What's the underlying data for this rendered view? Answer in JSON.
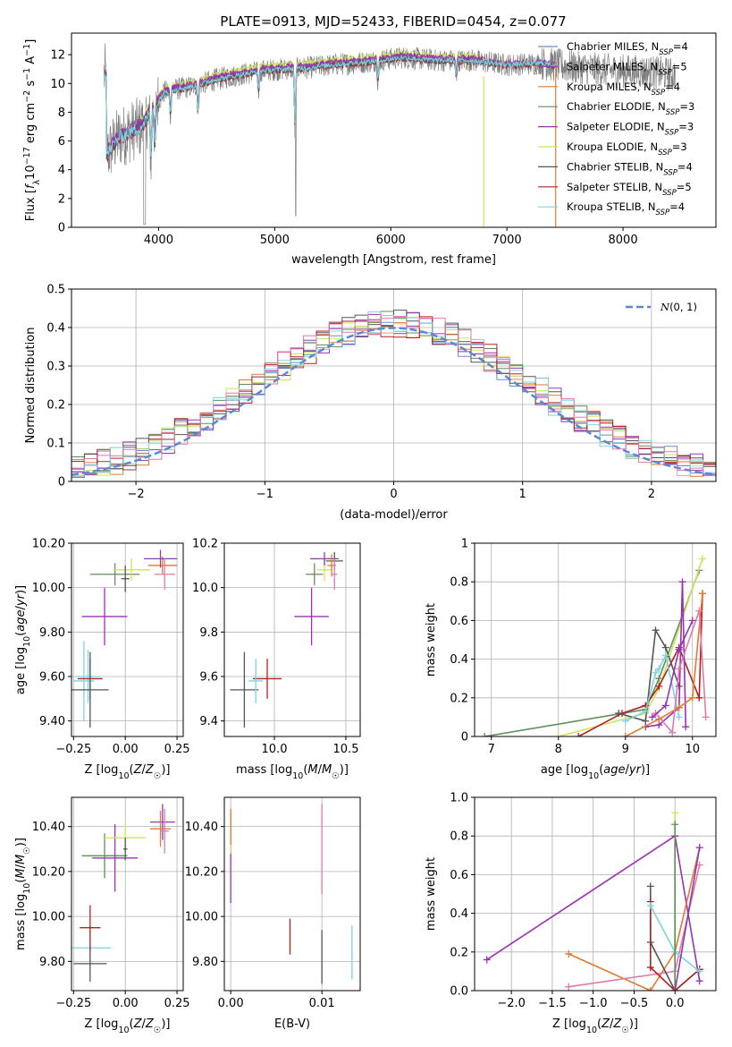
{
  "figure_title": "PLATE=0913, MJD=52433, FIBERID=0454, z=0.077",
  "colors": {
    "chabrier_miles": "#6a8dc8",
    "salpeter_miles": "#8e3aad",
    "kroupa_miles": "#e07a30",
    "chabrier_elodie": "#5f8f5a",
    "salpeter_elodie": "#9b30b0",
    "kroupa_elodie": "#cfe35a",
    "chabrier_stelib": "#555555",
    "salpeter_stelib": "#b22020",
    "kroupa_stelib": "#7fd3df",
    "pink": "#e07aa8",
    "data_spectrum": "#808080",
    "normal_curve": "#5b87d6",
    "grid": "#b0b0b0"
  },
  "chart_data": [
    {
      "type": "line",
      "id": "spectrum",
      "xlabel": "wavelength [Angstrom, rest frame]",
      "ylabel": "Flux [f_λ10^-17 erg cm^-2 s^-1 A^-1]",
      "xlim": [
        3250,
        8800
      ],
      "ylim": [
        0,
        13.5
      ],
      "xticks": [
        4000,
        5000,
        6000,
        7000,
        8000
      ],
      "yticks": [
        0,
        2,
        4,
        6,
        8,
        10,
        12
      ],
      "grid": false,
      "legend_position": "right",
      "legend": [
        "Chabrier MILES, N_SSP=4",
        "Salpeter MILES, N_SSP=5",
        "Kroupa MILES, N_SSP=4",
        "Chabrier ELODIE, N_SSP=3",
        "Salpeter ELODIE, N_SSP=3",
        "Kroupa ELODIE, N_SSP=3",
        "Chabrier STELIB, N_SSP=4",
        "Salpeter STELIB, N_SSP=5",
        "Kroupa STELIB, N_SSP=4"
      ],
      "continuum": {
        "x": [
          3550,
          3650,
          3750,
          3850,
          3950,
          4050,
          4150,
          4300,
          4500,
          4700,
          4900,
          5100,
          5300,
          5500,
          5800,
          6100,
          6400,
          6700,
          7000,
          7300,
          7600,
          7900,
          8200,
          8450
        ],
        "y": [
          5.0,
          6.2,
          6.6,
          7.0,
          8.2,
          9.4,
          9.6,
          9.8,
          10.3,
          10.6,
          10.9,
          11.0,
          11.1,
          11.3,
          11.5,
          11.8,
          11.6,
          11.6,
          11.3,
          11.4,
          11.1,
          10.9,
          10.8,
          10.6
        ]
      },
      "data_range": [
        3530,
        8450
      ]
    },
    {
      "type": "bar",
      "id": "residual-histograms",
      "xlabel": "(data-model)/error",
      "ylabel": "Normed distribution",
      "xlim": [
        -2.5,
        2.5
      ],
      "ylim": [
        0,
        0.5
      ],
      "xticks": [
        -2,
        -1,
        0,
        1,
        2
      ],
      "yticks": [
        0.0,
        0.1,
        0.2,
        0.3,
        0.4,
        0.5
      ],
      "bin_width": 0.1,
      "bin_start": -2.5,
      "grid": true,
      "legend_position": "top-right",
      "legend": [
        "N(0,1)"
      ],
      "normal_curve": {
        "mean": 0,
        "sigma": 1
      }
    },
    {
      "type": "scatter",
      "id": "age-vs-metallicity",
      "xlabel": "Z [log10(Z/Z☉)]",
      "ylabel": "age [log10(age/yr)]",
      "xlim": [
        -0.26,
        0.28
      ],
      "ylim": [
        9.33,
        10.2
      ],
      "xticks": [
        -0.25,
        0.0,
        0.25
      ],
      "yticks": [
        9.4,
        9.6,
        9.8,
        10.0,
        10.2
      ],
      "grid": true,
      "points": [
        {
          "c": "kroupa_stelib",
          "x": -0.2,
          "y": 9.58,
          "xerr": 0.05,
          "yerr": 0.18
        },
        {
          "c": "kroupa_stelib",
          "x": -0.18,
          "y": 9.6,
          "xerr": 0.06,
          "yerr": 0.12
        },
        {
          "c": "salpeter_stelib",
          "x": -0.17,
          "y": 9.59,
          "xerr": 0.06,
          "yerr": 0.09
        },
        {
          "c": "chabrier_stelib",
          "x": -0.17,
          "y": 9.54,
          "xerr": 0.09,
          "yerr": 0.17
        },
        {
          "c": "salpeter_elodie",
          "x": -0.1,
          "y": 9.87,
          "xerr": 0.11,
          "yerr": 0.13
        },
        {
          "c": "chabrier_elodie",
          "x": -0.05,
          "y": 10.06,
          "xerr": 0.12,
          "yerr": 0.05
        },
        {
          "c": "kroupa_elodie",
          "x": 0.03,
          "y": 10.08,
          "xerr": 0.09,
          "yerr": 0.05
        },
        {
          "c": "chabrier_stelib",
          "x": 0.0,
          "y": 10.04,
          "xerr": 0.02,
          "yerr": 0.06
        },
        {
          "c": "kroupa_miles",
          "x": 0.18,
          "y": 10.1,
          "xerr": 0.07,
          "yerr": 0.04
        },
        {
          "c": "salpeter_miles",
          "x": 0.17,
          "y": 10.13,
          "xerr": 0.08,
          "yerr": 0.04
        },
        {
          "c": "pink",
          "x": 0.19,
          "y": 10.06,
          "xerr": 0.05,
          "yerr": 0.07
        }
      ]
    },
    {
      "type": "scatter",
      "id": "age-vs-mass",
      "xlabel": "mass [log10(M/M☉)]",
      "ylabel": "",
      "xlim": [
        9.65,
        10.6
      ],
      "ylim": [
        9.33,
        10.2
      ],
      "xticks": [
        10.0,
        10.5
      ],
      "yticks": [
        9.4,
        9.6,
        9.8,
        10.0,
        10.2
      ],
      "grid": true,
      "points": [
        {
          "c": "chabrier_stelib",
          "x": 9.79,
          "y": 9.54,
          "xerr": 0.1,
          "yerr": 0.17
        },
        {
          "c": "salpeter_stelib",
          "x": 9.95,
          "y": 9.59,
          "xerr": 0.1,
          "yerr": 0.09
        },
        {
          "c": "kroupa_stelib",
          "x": 9.87,
          "y": 9.58,
          "xerr": 0.05,
          "yerr": 0.1
        },
        {
          "c": "salpeter_elodie",
          "x": 10.26,
          "y": 9.87,
          "xerr": 0.12,
          "yerr": 0.13
        },
        {
          "c": "chabrier_elodie",
          "x": 10.28,
          "y": 10.06,
          "xerr": 0.06,
          "yerr": 0.05
        },
        {
          "c": "kroupa_elodie",
          "x": 10.35,
          "y": 10.08,
          "xerr": 0.05,
          "yerr": 0.05
        },
        {
          "c": "salpeter_miles",
          "x": 10.35,
          "y": 10.13,
          "xerr": 0.1,
          "yerr": 0.03
        },
        {
          "c": "chabrier_stelib",
          "x": 10.42,
          "y": 10.12,
          "xerr": 0.06,
          "yerr": 0.04
        },
        {
          "c": "kroupa_miles",
          "x": 10.4,
          "y": 10.1,
          "xerr": 0.03,
          "yerr": 0.05
        },
        {
          "c": "pink",
          "x": 10.42,
          "y": 10.06,
          "xerr": 0.02,
          "yerr": 0.07
        }
      ]
    },
    {
      "type": "line",
      "id": "mass-weight-vs-age",
      "xlabel": "age [log10(age/yr)]",
      "ylabel": "mass weight",
      "xlim": [
        6.75,
        10.35
      ],
      "ylim": [
        0,
        1.0
      ],
      "xticks": [
        7,
        8,
        9,
        10
      ],
      "yticks": [
        0.0,
        0.2,
        0.4,
        0.6,
        0.8,
        1.0
      ],
      "grid": true,
      "series": [
        {
          "c": "chabrier_elodie",
          "x": [
            6.9,
            9.3,
            9.5,
            10.1
          ],
          "y": [
            0.0,
            0.14,
            0.3,
            0.86
          ]
        },
        {
          "c": "kroupa_elodie",
          "x": [
            8.0,
            9.3,
            9.5,
            10.15
          ],
          "y": [
            0.0,
            0.12,
            0.25,
            0.92
          ]
        },
        {
          "c": "salpeter_stelib",
          "x": [
            8.3,
            8.95,
            9.3,
            9.5,
            9.8,
            10.1,
            10.15
          ],
          "y": [
            0.0,
            0.12,
            0.16,
            0.26,
            0.46,
            0.2,
            0.74
          ]
        },
        {
          "c": "chabrier_stelib",
          "x": [
            8.9,
            9.3,
            9.45,
            9.6,
            9.8
          ],
          "y": [
            0.12,
            0.08,
            0.55,
            0.46,
            0.26
          ]
        },
        {
          "c": "kroupa_stelib",
          "x": [
            9.0,
            9.3,
            9.45,
            9.5,
            9.6,
            9.8
          ],
          "y": [
            0.08,
            0.13,
            0.33,
            0.35,
            0.42,
            0.1
          ]
        },
        {
          "c": "salpeter_elodie",
          "x": [
            9.3,
            9.5,
            9.8,
            9.85,
            9.9
          ],
          "y": [
            0.05,
            0.06,
            0.15,
            0.8,
            0.05
          ]
        },
        {
          "c": "kroupa_miles",
          "x": [
            9.0,
            9.5,
            9.8,
            10.0,
            10.15
          ],
          "y": [
            0.0,
            0.09,
            0.15,
            0.2,
            0.74
          ]
        },
        {
          "c": "pink",
          "x": [
            9.45,
            9.7,
            9.8,
            10.1,
            10.2
          ],
          "y": [
            0.12,
            0.02,
            0.35,
            0.65,
            0.1
          ]
        },
        {
          "c": "salpeter_miles",
          "x": [
            9.4,
            9.6,
            9.8,
            10.0
          ],
          "y": [
            0.1,
            0.16,
            0.45,
            0.6
          ]
        }
      ]
    },
    {
      "type": "scatter",
      "id": "mass-vs-metallicity",
      "xlabel": "Z [log10(Z/Z☉)]",
      "ylabel": "mass [log10(M/M☉)]",
      "xlim": [
        -0.26,
        0.28
      ],
      "ylim": [
        9.67,
        10.53
      ],
      "xticks": [
        -0.25,
        0.0,
        0.25
      ],
      "yticks": [
        9.8,
        10.0,
        10.2,
        10.4
      ],
      "grid": true,
      "points": [
        {
          "c": "kroupa_stelib",
          "x": -0.17,
          "y": 9.86,
          "xerr": 0.1,
          "yerr": 0.1
        },
        {
          "c": "chabrier_stelib",
          "x": -0.17,
          "y": 9.79,
          "xerr": 0.08,
          "yerr": 0.08
        },
        {
          "c": "salpeter_stelib",
          "x": -0.17,
          "y": 9.95,
          "xerr": 0.05,
          "yerr": 0.1
        },
        {
          "c": "chabrier_elodie",
          "x": -0.1,
          "y": 10.27,
          "xerr": 0.11,
          "yerr": 0.1
        },
        {
          "c": "salpeter_elodie",
          "x": -0.05,
          "y": 10.26,
          "xerr": 0.11,
          "yerr": 0.15
        },
        {
          "c": "kroupa_elodie",
          "x": 0.0,
          "y": 10.35,
          "xerr": 0.1,
          "yerr": 0.06
        },
        {
          "c": "chabrier_stelib",
          "x": 0.0,
          "y": 10.3,
          "xerr": 0.01,
          "yerr": 0.05
        },
        {
          "c": "salpeter_miles",
          "x": 0.18,
          "y": 10.42,
          "xerr": 0.06,
          "yerr": 0.08
        },
        {
          "c": "kroupa_miles",
          "x": 0.17,
          "y": 10.39,
          "xerr": 0.05,
          "yerr": 0.08
        },
        {
          "c": "pink",
          "x": 0.19,
          "y": 10.38,
          "xerr": 0.02,
          "yerr": 0.1
        }
      ]
    },
    {
      "type": "scatter",
      "id": "mass-vs-reddening",
      "xlabel": "E(B-V)",
      "ylabel": "",
      "xlim": [
        -0.0007,
        0.0142
      ],
      "ylim": [
        9.67,
        10.53
      ],
      "xticks": [
        0.0,
        0.01
      ],
      "yticks": [
        9.8,
        10.0,
        10.2,
        10.4
      ],
      "grid": true,
      "points": [
        {
          "c": "salpeter_elodie",
          "x": 0.0,
          "y": 10.26,
          "xerr": 0,
          "yerr": 0.2
        },
        {
          "c": "kroupa_elodie",
          "x": 0.0,
          "y": 10.38,
          "xerr": 0,
          "yerr": 0.1
        },
        {
          "c": "kroupa_miles",
          "x": 0.0,
          "y": 10.4,
          "xerr": 0,
          "yerr": 0.08
        },
        {
          "c": "salpeter_stelib",
          "x": 0.0065,
          "y": 9.91,
          "xerr": 0,
          "yerr": 0.08
        },
        {
          "c": "chabrier_stelib",
          "x": 0.01,
          "y": 9.82,
          "xerr": 0,
          "yerr": 0.12
        },
        {
          "c": "pink",
          "x": 0.01,
          "y": 10.3,
          "xerr": 0,
          "yerr": 0.2
        },
        {
          "c": "kroupa_stelib",
          "x": 0.0133,
          "y": 9.84,
          "xerr": 0,
          "yerr": 0.12
        }
      ]
    },
    {
      "type": "line",
      "id": "mass-weight-vs-metallicity",
      "xlabel": "Z [log10(Z/Z☉)]",
      "ylabel": "mass weight",
      "xlim": [
        -2.45,
        0.5
      ],
      "ylim": [
        0,
        1.0
      ],
      "xticks": [
        -2.0,
        -1.5,
        -1.0,
        -0.5,
        0.0
      ],
      "yticks": [
        0.0,
        0.2,
        0.4,
        0.6,
        0.8,
        1.0
      ],
      "grid": true,
      "series": [
        {
          "c": "salpeter_elodie",
          "x": [
            -2.3,
            0.0,
            0.3
          ],
          "y": [
            0.16,
            0.8,
            0.05
          ]
        },
        {
          "c": "kroupa_miles",
          "x": [
            -1.3,
            -0.3,
            0.0,
            0.3
          ],
          "y": [
            0.19,
            0.0,
            0.2,
            0.74
          ]
        },
        {
          "c": "pink",
          "x": [
            -1.3,
            0.0,
            0.3
          ],
          "y": [
            0.02,
            0.1,
            0.65
          ]
        },
        {
          "c": "chabrier_stelib",
          "x": [
            -0.3,
            -0.3,
            0.0,
            0.3
          ],
          "y": [
            0.54,
            0.25,
            0.0,
            0.11
          ]
        },
        {
          "c": "salpeter_stelib",
          "x": [
            -0.3,
            -0.3,
            0.0,
            0.3
          ],
          "y": [
            0.46,
            0.12,
            0.0,
            0.11
          ]
        },
        {
          "c": "kroupa_stelib",
          "x": [
            -0.3,
            0.0,
            0.3
          ],
          "y": [
            0.44,
            0.2,
            0.1
          ]
        },
        {
          "c": "kroupa_elodie",
          "x": [
            0.0,
            0.0
          ],
          "y": [
            0.92,
            0.0
          ]
        },
        {
          "c": "chabrier_elodie",
          "x": [
            0.0,
            0.0
          ],
          "y": [
            0.86,
            0.0
          ]
        },
        {
          "c": "salpeter_miles",
          "x": [
            0.0,
            0.3
          ],
          "y": [
            0.0,
            0.74
          ]
        }
      ]
    }
  ]
}
